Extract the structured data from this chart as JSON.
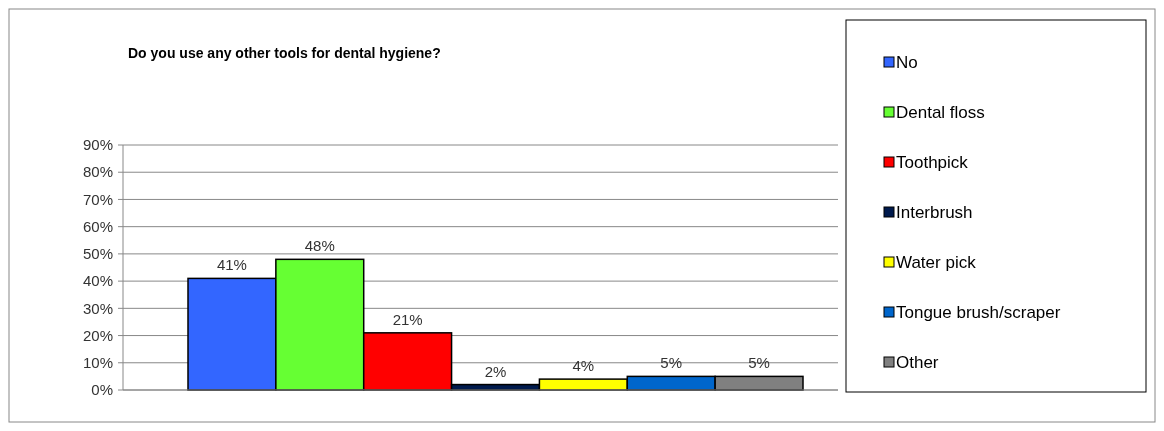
{
  "chart_data": {
    "type": "bar",
    "title": "Do you use any other tools for dental hygiene?",
    "categories": [
      null
    ],
    "series": [
      {
        "name": "No",
        "color": "#3366ff",
        "values": [
          41
        ],
        "value_labels": [
          "41%"
        ]
      },
      {
        "name": "Dental floss",
        "color": "#66ff33",
        "values": [
          48
        ],
        "value_labels": [
          "48%"
        ]
      },
      {
        "name": "Toothpick",
        "color": "#ff0000",
        "values": [
          21
        ],
        "value_labels": [
          "21%"
        ]
      },
      {
        "name": "Interbrush",
        "color": "#001a4d",
        "values": [
          2
        ],
        "value_labels": [
          "2%"
        ]
      },
      {
        "name": "Water pick",
        "color": "#ffff00",
        "values": [
          4
        ],
        "value_labels": [
          "4%"
        ]
      },
      {
        "name": "Tongue brush/scraper",
        "color": "#0066cc",
        "values": [
          5
        ],
        "value_labels": [
          "5%"
        ]
      },
      {
        "name": "Other",
        "color": "#808080",
        "values": [
          5
        ],
        "value_labels": [
          "5%"
        ]
      }
    ],
    "ylim": [
      0,
      90
    ],
    "yticks": [
      {
        "value": 0,
        "label": "0%"
      },
      {
        "value": 10,
        "label": "10%"
      },
      {
        "value": 20,
        "label": "20%"
      },
      {
        "value": 30,
        "label": "30%"
      },
      {
        "value": 40,
        "label": "40%"
      },
      {
        "value": 50,
        "label": "50%"
      },
      {
        "value": 60,
        "label": "60%"
      },
      {
        "value": 70,
        "label": "70%"
      },
      {
        "value": 80,
        "label": "80%"
      },
      {
        "value": 90,
        "label": "90%"
      }
    ],
    "grid": "y",
    "legend": "right"
  }
}
